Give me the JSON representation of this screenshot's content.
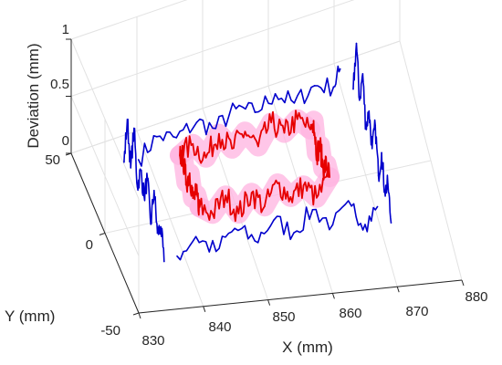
{
  "chart_data": {
    "type": "line3d",
    "xlabel": "X (mm)",
    "ylabel": "Y (mm)",
    "zlabel": "Deviation (mm)",
    "xlim": [
      830,
      880
    ],
    "ylim": [
      -50,
      50
    ],
    "zlim": [
      0,
      1
    ],
    "xticks": [
      "830",
      "840",
      "850",
      "860",
      "870",
      "880"
    ],
    "yticks": [
      "-50",
      "0",
      "50"
    ],
    "zticks": [
      "0",
      "0.5",
      "1"
    ],
    "grid": true,
    "colors": {
      "outer": "#0000cc",
      "inner": "#e60000",
      "inner_band": "#ffb3e0",
      "inner_center": "#8b2500"
    },
    "series": [
      {
        "key": "outer_back",
        "color": "outer",
        "points": [
          [
            838,
            28,
            0.12
          ],
          [
            841,
            30,
            0.24
          ],
          [
            844,
            30,
            0.18
          ],
          [
            847,
            29,
            0.28
          ],
          [
            850,
            30,
            0.16
          ],
          [
            853,
            29,
            0.3
          ],
          [
            856,
            30,
            0.2
          ],
          [
            859,
            29,
            0.33
          ],
          [
            862,
            30,
            0.18
          ],
          [
            865,
            29,
            0.3
          ],
          [
            868,
            30,
            0.22
          ],
          [
            869,
            30,
            0.36
          ]
        ]
      },
      {
        "key": "outer_front",
        "color": "outer",
        "points": [
          [
            838,
            -30,
            0.15
          ],
          [
            841,
            -29,
            0.28
          ],
          [
            844,
            -30,
            0.14
          ],
          [
            847,
            -29,
            0.3
          ],
          [
            850,
            -30,
            0.18
          ],
          [
            853,
            -29,
            0.32
          ],
          [
            856,
            -30,
            0.2
          ],
          [
            859,
            -29,
            0.36
          ],
          [
            862,
            -30,
            0.22
          ],
          [
            865,
            -29,
            0.34
          ],
          [
            867,
            -30,
            0.18
          ],
          [
            869,
            -29,
            0.3
          ]
        ]
      },
      {
        "key": "outer_left",
        "color": "outer",
        "points": [
          [
            836,
            30,
            0.1
          ],
          [
            836,
            25,
            0.55
          ],
          [
            836,
            20,
            0.2
          ],
          [
            836,
            15,
            0.62
          ],
          [
            836,
            10,
            0.18
          ],
          [
            836,
            5,
            0.4
          ],
          [
            836,
            0,
            0.25
          ],
          [
            836,
            -5,
            0.48
          ],
          [
            836,
            -10,
            0.15
          ],
          [
            836,
            -15,
            0.52
          ],
          [
            836,
            -20,
            0.22
          ],
          [
            836,
            -25,
            0.35
          ],
          [
            836,
            -30,
            0.12
          ]
        ]
      },
      {
        "key": "outer_right",
        "color": "outer",
        "points": [
          [
            871,
            30,
            0.15
          ],
          [
            871,
            25,
            0.65
          ],
          [
            871,
            20,
            0.25
          ],
          [
            871,
            15,
            0.58
          ],
          [
            871,
            10,
            0.2
          ],
          [
            871,
            5,
            0.45
          ],
          [
            871,
            0,
            0.22
          ],
          [
            871,
            -5,
            0.52
          ],
          [
            871,
            -10,
            0.18
          ],
          [
            871,
            -15,
            0.48
          ],
          [
            871,
            -20,
            0.24
          ],
          [
            871,
            -25,
            0.4
          ],
          [
            871,
            -30,
            0.16
          ]
        ]
      },
      {
        "key": "inner_back",
        "color": "inner",
        "points": [
          [
            843,
            15,
            0.28
          ],
          [
            845,
            15,
            0.35
          ],
          [
            847,
            15,
            0.2
          ],
          [
            849,
            15,
            0.38
          ],
          [
            851,
            15,
            0.22
          ],
          [
            853,
            15,
            0.34
          ],
          [
            855,
            15,
            0.18
          ],
          [
            857,
            15,
            0.36
          ],
          [
            859,
            15,
            0.24
          ],
          [
            861,
            15,
            0.33
          ],
          [
            863,
            15,
            0.21
          ]
        ]
      },
      {
        "key": "inner_front",
        "color": "inner",
        "points": [
          [
            843,
            -15,
            0.3
          ],
          [
            845,
            -15,
            0.22
          ],
          [
            847,
            -15,
            0.36
          ],
          [
            849,
            -15,
            0.18
          ],
          [
            851,
            -15,
            0.34
          ],
          [
            853,
            -15,
            0.2
          ],
          [
            855,
            -15,
            0.38
          ],
          [
            857,
            -15,
            0.24
          ],
          [
            859,
            -15,
            0.32
          ],
          [
            861,
            -15,
            0.19
          ],
          [
            863,
            -15,
            0.35
          ]
        ]
      },
      {
        "key": "inner_left",
        "color": "inner",
        "points": [
          [
            843,
            15,
            0.28
          ],
          [
            843,
            10,
            0.34
          ],
          [
            843,
            5,
            0.2
          ],
          [
            843,
            0,
            0.36
          ],
          [
            843,
            -5,
            0.22
          ],
          [
            843,
            -10,
            0.33
          ],
          [
            843,
            -15,
            0.3
          ]
        ]
      },
      {
        "key": "inner_right",
        "color": "inner",
        "points": [
          [
            863,
            15,
            0.21
          ],
          [
            863,
            10,
            0.38
          ],
          [
            863,
            5,
            0.19
          ],
          [
            863,
            0,
            0.35
          ],
          [
            863,
            -5,
            0.24
          ],
          [
            863,
            -10,
            0.37
          ],
          [
            863,
            -15,
            0.35
          ]
        ]
      }
    ]
  }
}
